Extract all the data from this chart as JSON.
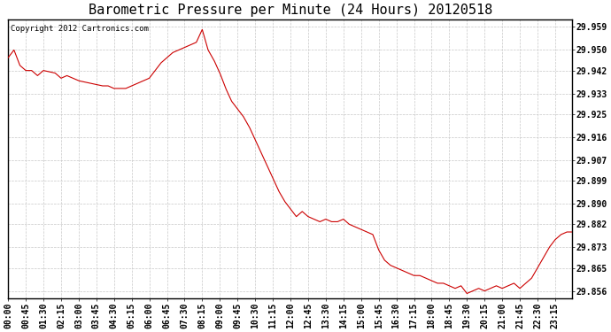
{
  "title": "Barometric Pressure per Minute (24 Hours) 20120518",
  "copyright": "Copyright 2012 Cartronics.com",
  "line_color": "#cc0000",
  "bg_color": "#ffffff",
  "grid_color": "#c8c8c8",
  "y_ticks": [
    29.856,
    29.865,
    29.873,
    29.882,
    29.89,
    29.899,
    29.907,
    29.916,
    29.925,
    29.933,
    29.942,
    29.95,
    29.959
  ],
  "ylim_min": 29.853,
  "ylim_max": 29.962,
  "x_tick_labels": [
    "00:00",
    "00:45",
    "01:30",
    "02:15",
    "03:00",
    "03:45",
    "04:30",
    "05:15",
    "06:00",
    "06:45",
    "07:30",
    "08:15",
    "09:00",
    "09:45",
    "10:30",
    "11:15",
    "12:00",
    "12:45",
    "13:30",
    "14:15",
    "15:00",
    "15:45",
    "16:30",
    "17:15",
    "18:00",
    "18:45",
    "19:30",
    "20:15",
    "21:00",
    "21:45",
    "22:30",
    "23:15"
  ],
  "title_fontsize": 11,
  "tick_fontsize": 7,
  "copyright_fontsize": 6.5
}
